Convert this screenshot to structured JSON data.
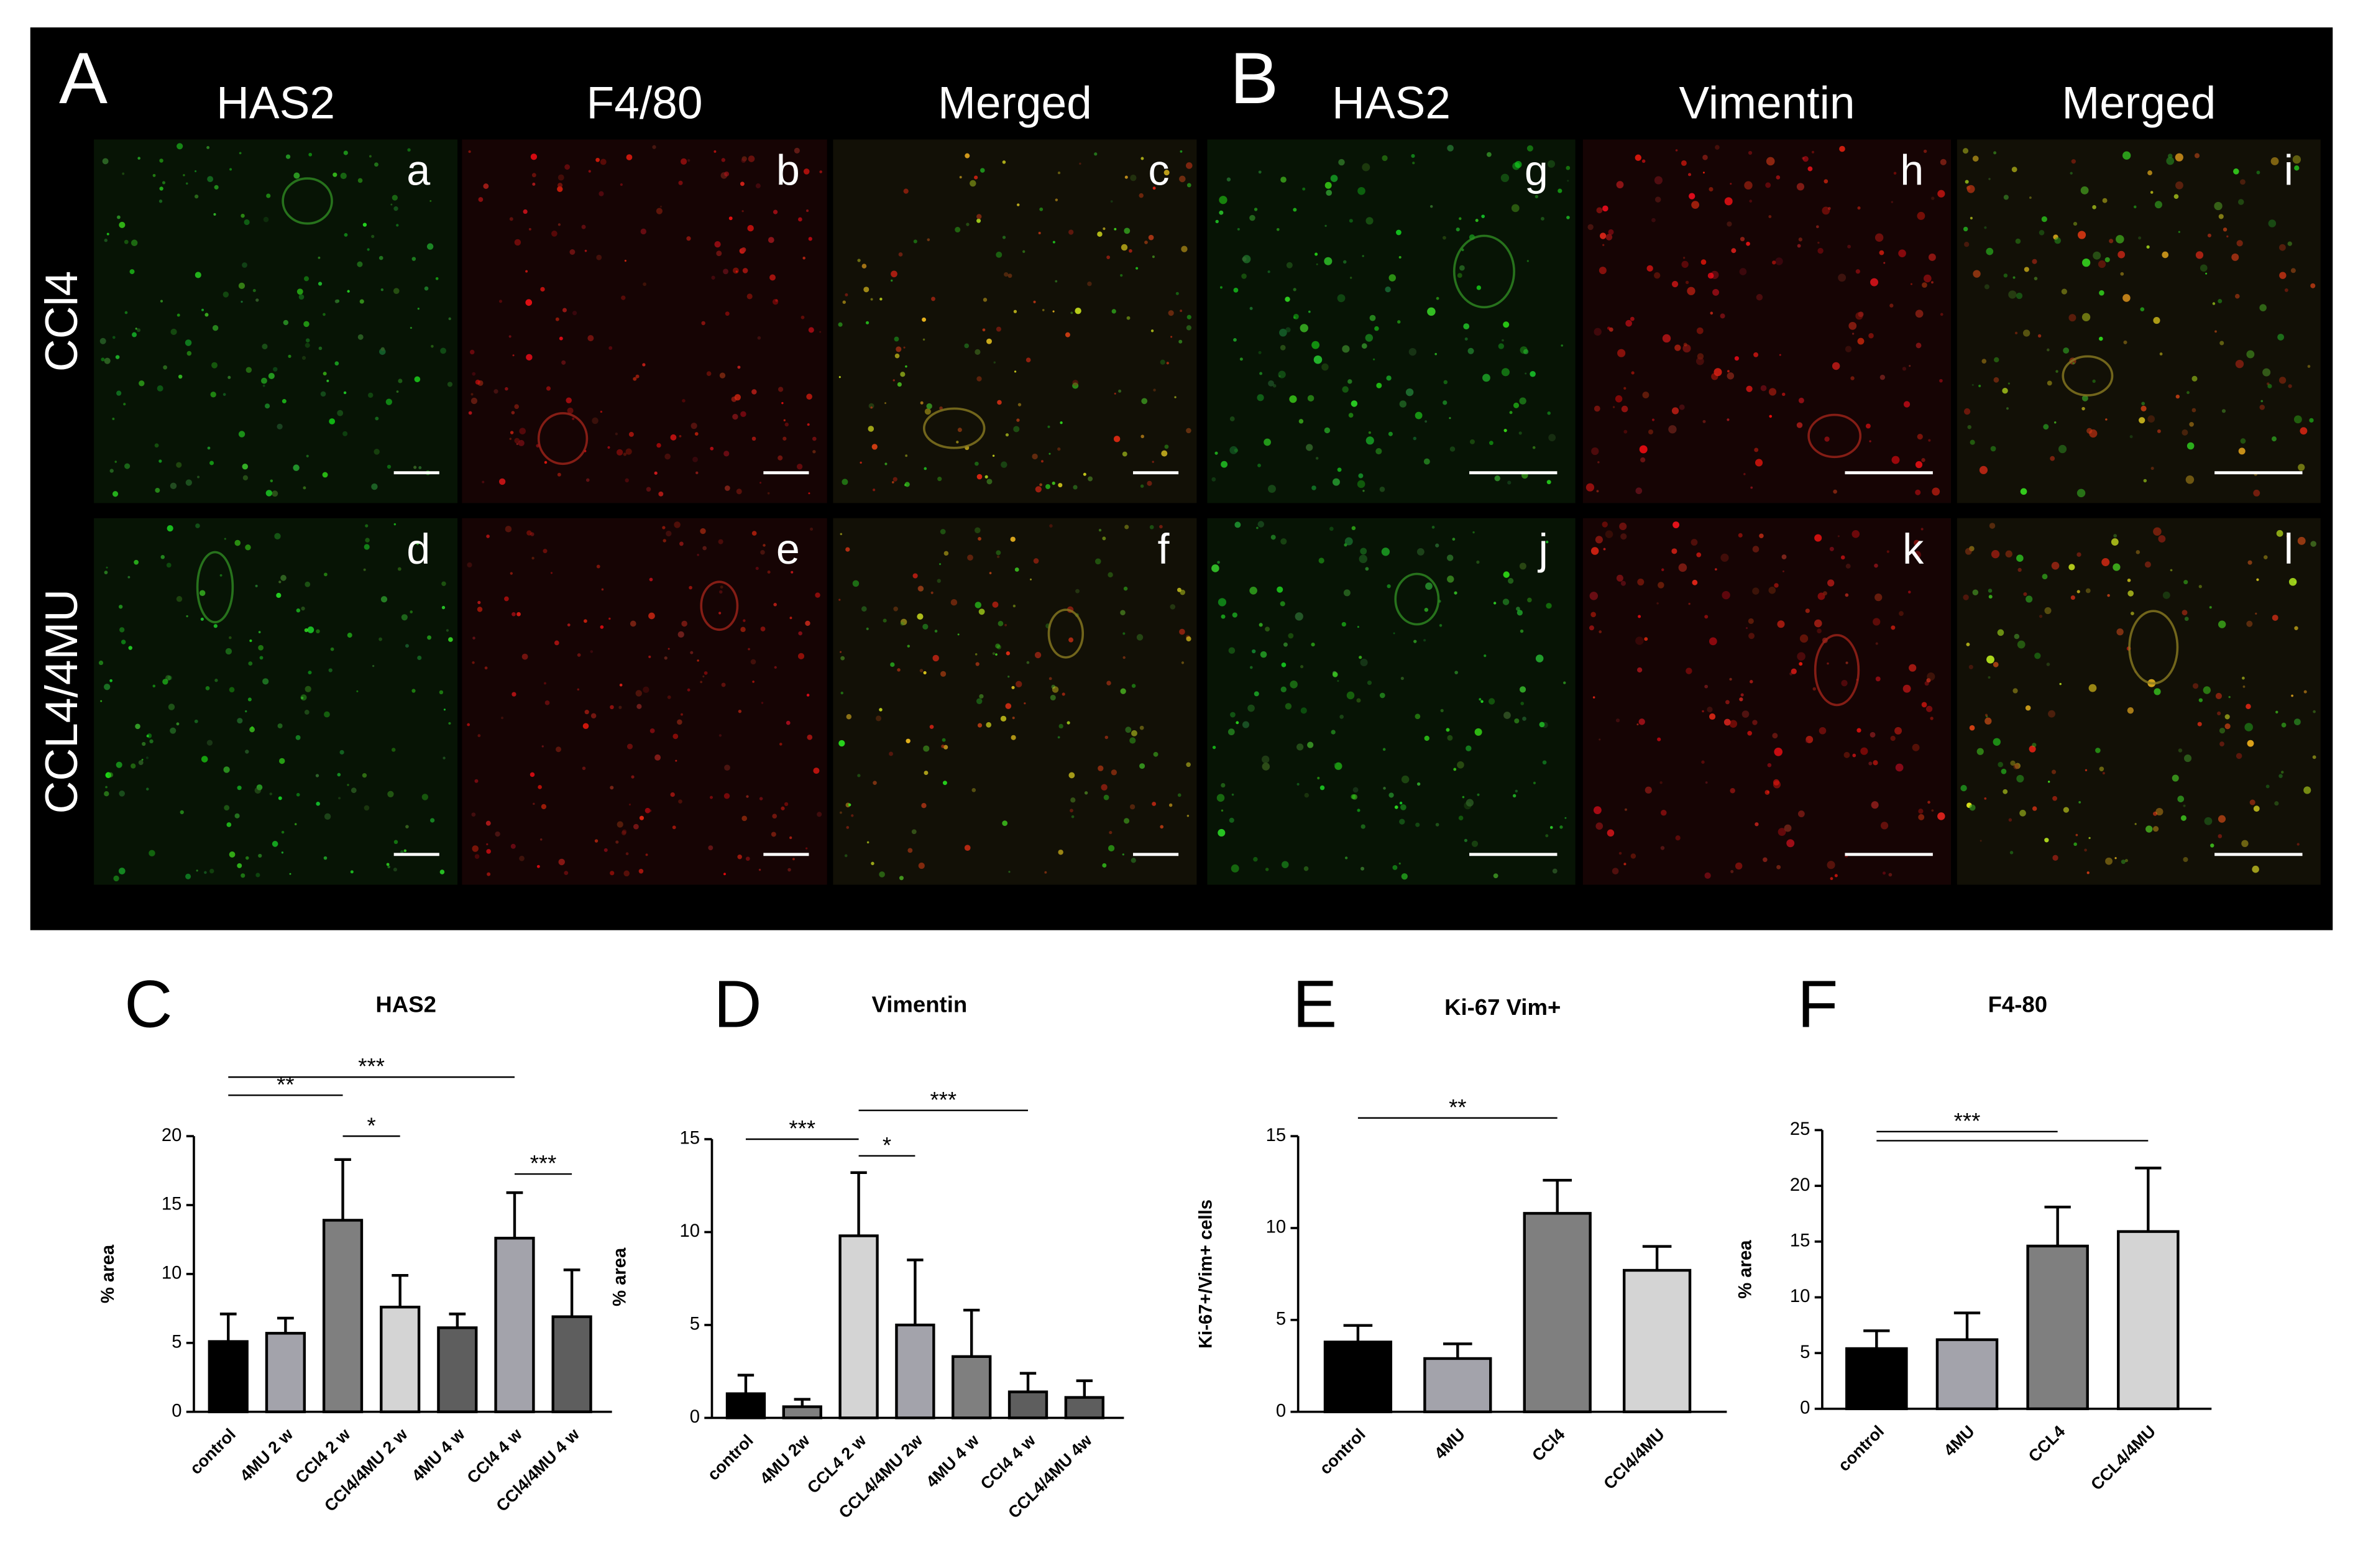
{
  "microscopy": {
    "panel_A": {
      "letter": "A",
      "columns": [
        "HAS2",
        "F4/80",
        "Merged"
      ]
    },
    "panel_B": {
      "letter": "B",
      "columns": [
        "HAS2",
        "Vimentin",
        "Merged"
      ]
    },
    "rows": [
      "CCl4",
      "CCL4/4MU"
    ],
    "image_labels": [
      [
        "a",
        "b",
        "c",
        "g",
        "h",
        "i"
      ],
      [
        "d",
        "e",
        "f",
        "j",
        "k",
        "l"
      ]
    ]
  },
  "chart_data": [
    {
      "type": "bar",
      "panel": "C",
      "title": "HAS2",
      "y_label": "% area",
      "categories": [
        "control",
        "4MU 2 w",
        "CCl4 2 w",
        "CCl4/4MU 2 w",
        "4MU 4 w",
        "CCl4 4 w",
        "CCl4/4MU 4 w"
      ],
      "values": [
        5.1,
        5.7,
        13.9,
        7.6,
        6.1,
        12.6,
        6.9
      ],
      "errors": [
        2.0,
        1.1,
        4.4,
        2.3,
        1.0,
        3.3,
        3.4
      ],
      "colors": [
        "#000000",
        "#a3a3ab",
        "#7f7f7f",
        "#d4d4d4",
        "#5e5e5e",
        "#a3a3ab",
        "#5e5e5e"
      ],
      "ylim": [
        0,
        20
      ],
      "yticks": [
        0,
        5,
        10,
        15,
        20
      ],
      "significance": [
        {
          "from": 0,
          "to": 2,
          "label": "**"
        },
        {
          "from": 0,
          "to": 5,
          "label": "***"
        },
        {
          "from": 2,
          "to": 3,
          "label": "*"
        },
        {
          "from": 5,
          "to": 6,
          "label": "***"
        }
      ]
    },
    {
      "type": "bar",
      "panel": "D",
      "title": "Vimentin",
      "y_label": "% area",
      "categories": [
        "control",
        "4MU 2w",
        "CCL4 2 w",
        "CCL4/4MU 2w",
        "4MU 4 w",
        "CCl4 4 w",
        "CCL4/4MU 4w"
      ],
      "values": [
        1.3,
        0.6,
        9.8,
        5.0,
        3.3,
        1.4,
        1.1
      ],
      "errors": [
        1.0,
        0.4,
        3.4,
        3.5,
        2.5,
        1.0,
        0.9
      ],
      "colors": [
        "#000000",
        "#7f7f7f",
        "#d4d4d4",
        "#a3a3ab",
        "#7f7f7f",
        "#5e5e5e",
        "#5e5e5e"
      ],
      "ylim": [
        0,
        15
      ],
      "yticks": [
        0,
        5,
        10,
        15
      ],
      "significance": [
        {
          "from": 0,
          "to": 2,
          "label": "***"
        },
        {
          "from": 2,
          "to": 3,
          "label": "*"
        },
        {
          "from": 2,
          "to": 5,
          "label": "***"
        }
      ]
    },
    {
      "type": "bar",
      "panel": "E",
      "title": "Ki-67 Vim+",
      "y_label": "Ki-67+/Vim+ cells",
      "categories": [
        "control",
        "4MU",
        "CCl4",
        "CCl4/4MU"
      ],
      "values": [
        3.8,
        2.9,
        10.8,
        7.7
      ],
      "errors": [
        0.9,
        0.8,
        1.8,
        1.3
      ],
      "colors": [
        "#000000",
        "#a3a3ab",
        "#7f7f7f",
        "#d4d4d4"
      ],
      "ylim": [
        0,
        15
      ],
      "yticks": [
        0,
        5,
        10,
        15
      ],
      "significance": [
        {
          "from": 0,
          "to": 2,
          "label": "**"
        }
      ]
    },
    {
      "type": "bar",
      "panel": "F",
      "title": "F4-80",
      "y_label": "% area",
      "categories": [
        "control",
        "4MU",
        "CCL4",
        "CCL4/4MU"
      ],
      "values": [
        5.4,
        6.2,
        14.6,
        15.9
      ],
      "errors": [
        1.6,
        2.4,
        3.5,
        5.7
      ],
      "colors": [
        "#000000",
        "#a3a3ab",
        "#7f7f7f",
        "#d4d4d4"
      ],
      "ylim": [
        0,
        25
      ],
      "yticks": [
        0,
        5,
        10,
        15,
        20,
        25
      ],
      "significance": [
        {
          "from": 0,
          "to": 2,
          "label": "***"
        },
        {
          "from": 0,
          "to": 3
        }
      ]
    }
  ]
}
